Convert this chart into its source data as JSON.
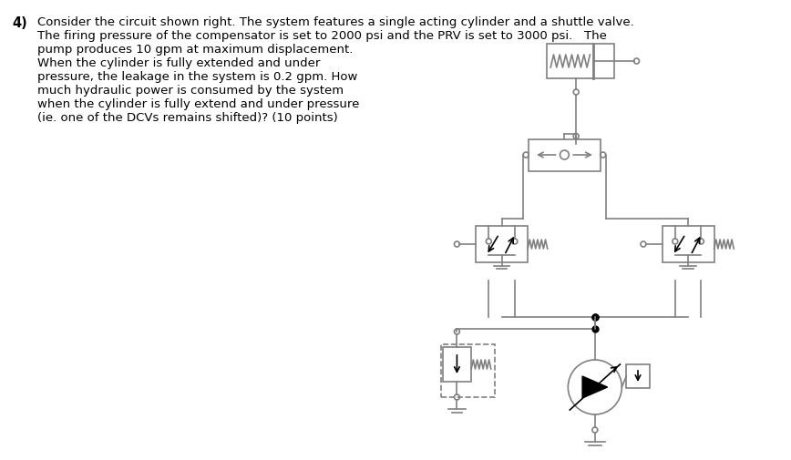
{
  "bg_color": "#ffffff",
  "text_color": "#000000",
  "line_color": "#808080",
  "dark_color": "#000000",
  "fig_width": 8.68,
  "fig_height": 5.05,
  "question_number": "4)",
  "text_lines": [
    "Consider the circuit shown right. The system features a single acting cylinder and a shuttle valve.",
    "The firing pressure of the compensator is set to 2000 psi and the PRV is set to 3000 psi.   The",
    "pump produces 10 gpm at maximum displacement.",
    "When the cylinder is fully extended and under",
    "pressure, the leakage in the system is 0.2 gpm. How",
    "much hydraulic power is consumed by the system",
    "when the cylinder is fully extend and under pressure",
    "(ie. one of the DCVs remains shifted)? (10 points)"
  ]
}
